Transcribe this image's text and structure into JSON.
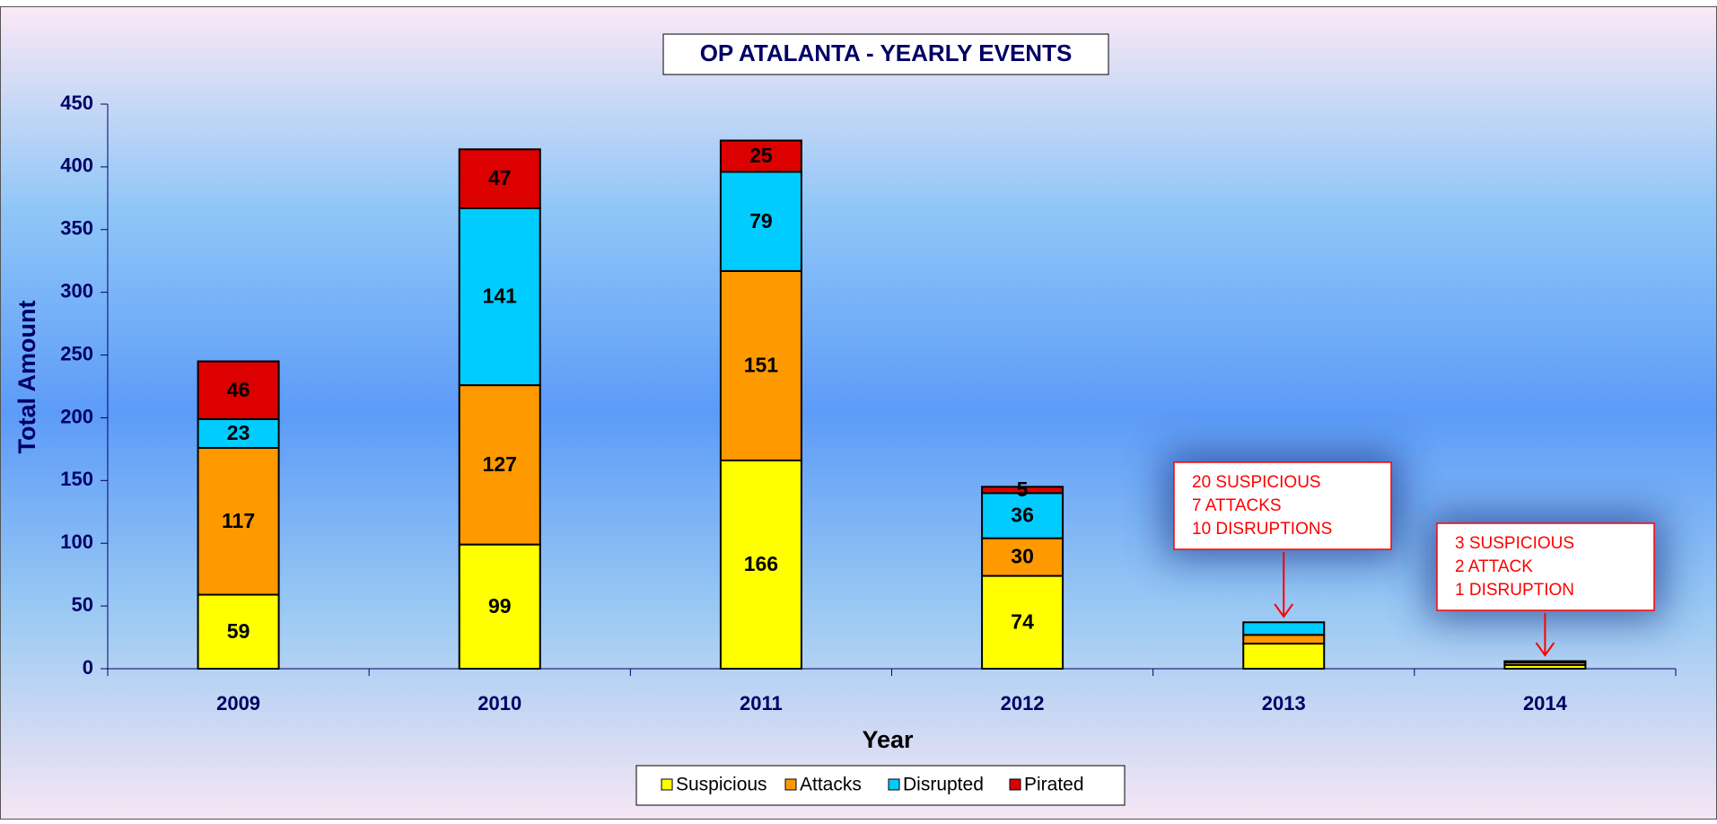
{
  "chart_data": {
    "type": "stacked_bar",
    "title": "OP ATALANTA - YEARLY EVENTS",
    "x_label": "Year",
    "y_label": "Total Amount",
    "categories": [
      "2009",
      "2010",
      "2011",
      "2012",
      "2013",
      "2014"
    ],
    "series": [
      {
        "name": "Suspicious",
        "color": "#ffff00",
        "values": [
          59,
          99,
          166,
          74,
          20,
          3
        ],
        "value_labels": [
          "59",
          "99",
          "166",
          "74",
          null,
          null
        ]
      },
      {
        "name": "Attacks",
        "color": "#ff9900",
        "values": [
          117,
          127,
          151,
          30,
          7,
          2
        ],
        "value_labels": [
          "117",
          "127",
          "151",
          "30",
          null,
          null
        ]
      },
      {
        "name": "Disrupted",
        "color": "#00ccff",
        "values": [
          23,
          141,
          79,
          36,
          10,
          1
        ],
        "value_labels": [
          "23",
          "141",
          "79",
          "36",
          null,
          null
        ]
      },
      {
        "name": "Pirated",
        "color": "#dd0000",
        "values": [
          46,
          47,
          25,
          5,
          0,
          0
        ],
        "value_labels": [
          "46",
          "47",
          "25",
          "5",
          null,
          null
        ]
      }
    ],
    "ylim": [
      0,
      450
    ],
    "yticks": [
      0,
      50,
      100,
      150,
      200,
      250,
      300,
      350,
      400,
      450
    ],
    "annotations": [
      {
        "category": "2013",
        "lines": [
          "20 SUSPICIOUS",
          "7 ATTACKS",
          "10 DISRUPTIONS"
        ]
      },
      {
        "category": "2014",
        "lines": [
          "3 SUSPICIOUS",
          "2 ATTACK",
          "1 DISRUPTION"
        ]
      }
    ]
  }
}
